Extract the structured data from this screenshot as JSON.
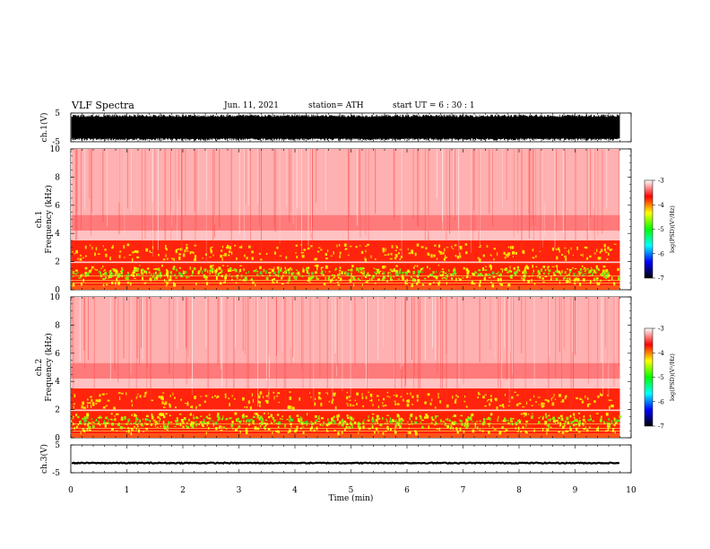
{
  "header": {
    "title": "VLF  Spectra",
    "date": "Jun. 11, 2021",
    "station": "station= ATH",
    "start": "start  UT  =   6  : 30 : 1"
  },
  "chart_data": [
    {
      "type": "line",
      "panel": "ch1-waveform",
      "ylabel": "ch.1(V)",
      "ylim": [
        -5,
        5
      ],
      "yticks": [
        "5",
        "-5"
      ],
      "xlim": [
        0,
        10
      ],
      "note_values": "dense waveform filling approximately -4.2 to 4.5 V",
      "color": "#000000"
    },
    {
      "type": "heatmap",
      "panel": "ch1-spectrogram",
      "ylabel": "ch.1\nFrequency (kHz)",
      "ylim": [
        0,
        10
      ],
      "yticks": [
        "0",
        "2",
        "4",
        "6",
        "8",
        "10"
      ],
      "xlim": [
        0,
        9.8
      ],
      "colorbar": {
        "label": "log(PSD)(V²/Hz)",
        "range": [
          -7,
          -3
        ],
        "ticks": [
          "-3",
          "-4",
          "-5",
          "-6",
          "-7"
        ]
      }
    },
    {
      "type": "heatmap",
      "panel": "ch2-spectrogram",
      "ylabel": "ch.2\nFrequency (kHz)",
      "ylim": [
        0,
        10
      ],
      "yticks": [
        "0",
        "2",
        "4",
        "6",
        "8",
        "10"
      ],
      "xlim": [
        0,
        9.8
      ],
      "colorbar": {
        "label": "log(PSD)(V²/Hz)",
        "range": [
          -7,
          -3
        ],
        "ticks": [
          "-3",
          "-4",
          "-5",
          "-6",
          "-7"
        ]
      }
    },
    {
      "type": "line",
      "panel": "ch3-waveform",
      "ylabel": "ch.3(V)",
      "ylim": [
        -5,
        5
      ],
      "yticks": [
        "5",
        "-5"
      ],
      "xlim": [
        0,
        10
      ],
      "note_values": "flat signal near -1.5 V",
      "color": "#000000"
    }
  ],
  "xaxis": {
    "label": "Time  (min)",
    "ticks": [
      "0",
      "1",
      "2",
      "3",
      "4",
      "5",
      "6",
      "7",
      "8",
      "9",
      "10"
    ],
    "range": [
      0,
      10
    ]
  },
  "colors": {
    "colormap": [
      "#000000",
      "#0000ff",
      "#00ffff",
      "#00ff00",
      "#ffff00",
      "#ff0000",
      "#ffffff"
    ]
  }
}
